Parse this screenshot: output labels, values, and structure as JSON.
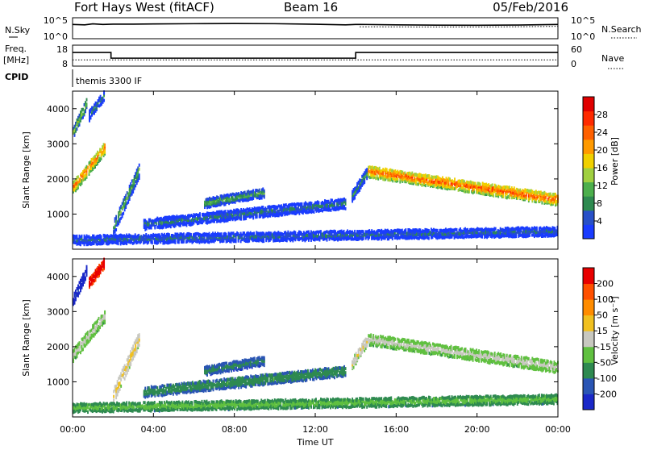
{
  "header": {
    "radar": "Fort Hays West (fitACF)",
    "beam": "Beam 16",
    "date": "05/Feb/2016"
  },
  "noise_panel": {
    "left_label": "N.Sky",
    "right_label": "N.Search",
    "left_ticks": [
      "10^5",
      "10^0"
    ],
    "right_ticks": [
      "10^5",
      "10^0"
    ]
  },
  "freq_panel": {
    "left_label_1": "Freq.",
    "left_label_2": "[MHz]",
    "right_label": "Nave",
    "left_ticks": [
      "18",
      "8"
    ],
    "right_ticks": [
      "60",
      "0"
    ]
  },
  "cpid": {
    "label": "CPID",
    "value": "themis 3300 IF"
  },
  "x_axis": {
    "title": "Time UT",
    "ticks": [
      "00:00",
      "04:00",
      "08:00",
      "12:00",
      "16:00",
      "20:00",
      "00:00"
    ]
  },
  "power_panel": {
    "ylabel": "Slant Range [km]",
    "yticks": [
      "4000",
      "3000",
      "2000",
      "1000"
    ],
    "colorbar_label": "Power [dB]",
    "colorbar_ticks": [
      "28",
      "24",
      "20",
      "16",
      "12",
      "8",
      "4"
    ],
    "colors": [
      "#1a3cff",
      "#2850c8",
      "#2e8a50",
      "#4caf4c",
      "#a0d040",
      "#f0d000",
      "#ff9a00",
      "#ff6000",
      "#ff2a00",
      "#e00000"
    ]
  },
  "velocity_panel": {
    "ylabel": "Slant Range [km]",
    "yticks": [
      "4000",
      "3000",
      "2000",
      "1000"
    ],
    "colorbar_label": "Velocity [m s⁻¹]",
    "colorbar_ticks": [
      "200",
      "100",
      "50",
      "15",
      "-15",
      "-50",
      "-100",
      "-200"
    ],
    "colors": [
      "#1a28c8",
      "#2a55b4",
      "#2e8a50",
      "#60c040",
      "#c8c8c0",
      "#f0c020",
      "#ff8c00",
      "#ff5000",
      "#e80000"
    ]
  },
  "chart_data": [
    {
      "type": "line",
      "title": "N.Sky / N.Search",
      "x_units": "hours UT",
      "xlim": [
        0,
        24
      ],
      "ylog": true,
      "ylim": [
        "10^0",
        "10^5"
      ],
      "series": [
        {
          "name": "N.Sky",
          "x": [
            0,
            0.6,
            1,
            1.5,
            2,
            3,
            4,
            6,
            8,
            10,
            12,
            13.5,
            14,
            14.2,
            16,
            18,
            20,
            22,
            24
          ],
          "y": [
            2500,
            2000,
            3500,
            2500,
            3000,
            3000,
            3300,
            3800,
            4200,
            3800,
            2800,
            2000,
            2500,
            2600,
            2000,
            1700,
            1600,
            1800,
            2500
          ]
        },
        {
          "name": "N.Search",
          "x": [
            14.2,
            16,
            18,
            20,
            22,
            24
          ],
          "y": [
            700,
            650,
            600,
            600,
            700,
            900
          ]
        }
      ]
    },
    {
      "type": "line",
      "title": "Freq. / Nave",
      "x_units": "hours UT",
      "xlim": [
        0,
        24
      ],
      "series": [
        {
          "name": "Freq. [MHz]",
          "x": [
            0,
            1.9,
            1.9,
            14.0,
            14.0,
            24
          ],
          "y": [
            14.5,
            14.5,
            11.8,
            11.8,
            14.5,
            14.5
          ]
        },
        {
          "name": "Nave",
          "x": [
            0,
            24
          ],
          "y": [
            18,
            18
          ]
        }
      ]
    },
    {
      "type": "heatmap",
      "title": "Power [dB]",
      "x_units": "hours UT",
      "y_units": "km",
      "xlim": [
        0,
        24
      ],
      "ylim": [
        0,
        4500
      ],
      "clim": [
        0,
        32
      ],
      "regions": [
        {
          "t0": 0.0,
          "t1": 1.6,
          "r_start": 1750,
          "r_end": 2900,
          "center_value": 24
        },
        {
          "t0": 0.0,
          "t1": 0.7,
          "r_start": 3300,
          "r_end": 4200,
          "center_value": 16
        },
        {
          "t0": 0.8,
          "t1": 1.6,
          "r_start": 3800,
          "r_end": 4400,
          "center_value": 10
        },
        {
          "t0": 2.0,
          "t1": 3.3,
          "r_start": 600,
          "r_end": 2300,
          "center_value": 13
        },
        {
          "t0": 3.5,
          "t1": 13.5,
          "r_start": 700,
          "r_end": 1300,
          "center_value": 9
        },
        {
          "t0": 6.5,
          "t1": 9.5,
          "r_start": 1300,
          "r_end": 1600,
          "center_value": 13
        },
        {
          "t0": 13.8,
          "t1": 14.6,
          "r_start": 1500,
          "r_end": 2200,
          "center_value": 10
        },
        {
          "t0": 14.6,
          "t1": 24.0,
          "r_start": 2200,
          "r_end": 1400,
          "center_value": 26
        },
        {
          "t0": 0.0,
          "t1": 24.0,
          "r_start": 250,
          "r_end": 500,
          "center_value": 8
        }
      ]
    },
    {
      "type": "heatmap",
      "title": "Velocity [m s⁻¹]",
      "x_units": "hours UT",
      "y_units": "km",
      "xlim": [
        0,
        24
      ],
      "ylim": [
        0,
        4500
      ],
      "clim": [
        -200,
        200
      ],
      "regions": [
        {
          "t0": 0.0,
          "t1": 1.6,
          "r_start": 1750,
          "r_end": 2900,
          "center_value": 0
        },
        {
          "t0": 0.0,
          "t1": 0.7,
          "r_start": 3300,
          "r_end": 4200,
          "center_value": -150
        },
        {
          "t0": 0.8,
          "t1": 1.6,
          "r_start": 3800,
          "r_end": 4400,
          "center_value": 200
        },
        {
          "t0": 2.0,
          "t1": 3.3,
          "r_start": 600,
          "r_end": 2300,
          "center_value": 40
        },
        {
          "t0": 3.5,
          "t1": 13.5,
          "r_start": 700,
          "r_end": 1300,
          "center_value": -70
        },
        {
          "t0": 6.5,
          "t1": 9.5,
          "r_start": 1300,
          "r_end": 1600,
          "center_value": -90
        },
        {
          "t0": 13.8,
          "t1": 14.6,
          "r_start": 1500,
          "r_end": 2200,
          "center_value": 30
        },
        {
          "t0": 14.6,
          "t1": 24.0,
          "r_start": 2200,
          "r_end": 1400,
          "center_value": 0
        },
        {
          "t0": 0.0,
          "t1": 24.0,
          "r_start": 250,
          "r_end": 500,
          "center_value": -40
        }
      ]
    }
  ]
}
